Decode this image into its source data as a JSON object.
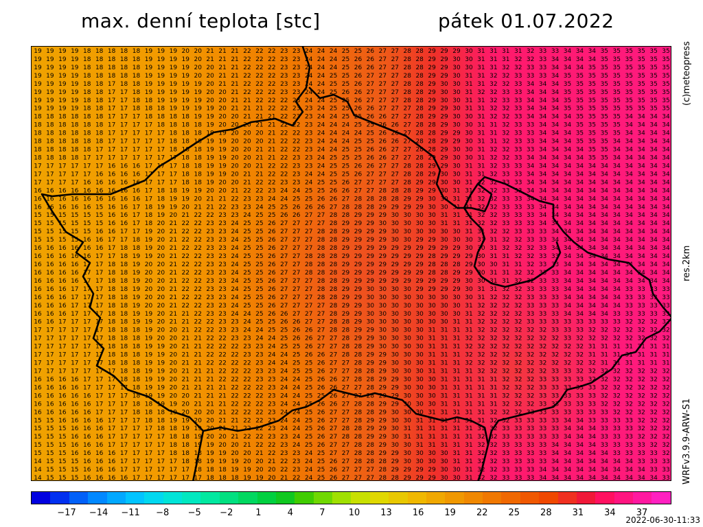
{
  "header": {
    "title": "max. denní teplota [stc]",
    "date": "pátek 01.07.2022"
  },
  "side_labels": {
    "copyright": "(c)meteopress",
    "resolution": "res.2km",
    "model": "WRFv3.9.9-ARW-S1"
  },
  "map": {
    "description_values_sample_rows": [
      [
        19,
        19,
        19,
        18,
        18,
        18,
        19,
        19,
        20,
        21,
        21,
        22,
        22,
        23,
        24,
        24,
        25,
        26,
        27,
        28,
        29,
        29,
        30,
        31,
        31,
        32,
        33,
        34,
        34,
        35,
        35,
        35,
        35
      ],
      [
        19,
        19,
        19,
        18,
        17,
        18,
        19,
        19,
        19,
        20,
        21,
        22,
        22,
        23,
        24,
        25,
        26,
        27,
        27,
        28,
        29,
        30,
        31,
        32,
        33,
        34,
        34,
        35,
        35,
        35,
        35,
        35,
        35
      ],
      [
        18,
        18,
        18,
        18,
        17,
        17,
        17,
        18,
        18,
        19,
        20,
        20,
        21,
        22,
        23,
        24,
        24,
        25,
        26,
        27,
        28,
        29,
        30,
        31,
        32,
        33,
        34,
        34,
        35,
        35,
        34,
        34,
        34
      ],
      [
        17,
        17,
        17,
        16,
        16,
        16,
        17,
        17,
        18,
        19,
        20,
        21,
        22,
        23,
        24,
        25,
        26,
        27,
        27,
        28,
        29,
        30,
        31,
        32,
        33,
        34,
        34,
        34,
        34,
        34,
        34,
        34,
        34
      ],
      [
        15,
        15,
        15,
        15,
        16,
        17,
        19,
        21,
        22,
        23,
        24,
        25,
        26,
        27,
        27,
        28,
        29,
        29,
        30,
        30,
        30,
        31,
        31,
        32,
        33,
        33,
        34,
        34,
        34,
        34,
        34,
        34,
        34
      ],
      [
        16,
        16,
        16,
        17,
        18,
        19,
        20,
        21,
        22,
        23,
        24,
        25,
        26,
        27,
        28,
        28,
        29,
        29,
        29,
        29,
        28,
        28,
        29,
        30,
        31,
        32,
        33,
        34,
        34,
        34,
        34,
        34,
        34
      ],
      [
        16,
        16,
        17,
        17,
        18,
        19,
        20,
        21,
        22,
        23,
        24,
        25,
        26,
        27,
        27,
        28,
        29,
        30,
        30,
        30,
        30,
        30,
        31,
        32,
        32,
        33,
        33,
        34,
        34,
        34,
        33,
        33,
        33
      ],
      [
        17,
        17,
        17,
        17,
        18,
        18,
        19,
        20,
        21,
        22,
        22,
        23,
        24,
        25,
        26,
        27,
        28,
        29,
        30,
        30,
        31,
        31,
        32,
        32,
        32,
        32,
        32,
        32,
        31,
        31,
        31,
        31,
        31
      ],
      [
        16,
        16,
        16,
        17,
        17,
        18,
        19,
        20,
        21,
        21,
        22,
        22,
        23,
        24,
        25,
        26,
        27,
        28,
        29,
        30,
        30,
        31,
        31,
        31,
        32,
        32,
        33,
        33,
        33,
        32,
        32,
        32,
        32
      ],
      [
        15,
        15,
        16,
        16,
        17,
        17,
        17,
        18,
        19,
        20,
        21,
        22,
        23,
        24,
        25,
        27,
        28,
        29,
        30,
        31,
        31,
        31,
        31,
        32,
        33,
        33,
        33,
        34,
        34,
        33,
        33,
        32,
        32
      ],
      [
        14,
        15,
        15,
        16,
        16,
        17,
        17,
        17,
        17,
        18,
        18,
        19,
        20,
        22,
        24,
        26,
        27,
        27,
        28,
        29,
        29,
        30,
        31,
        32,
        33,
        33,
        34,
        34,
        34,
        34,
        34,
        34,
        33
      ]
    ],
    "colors": {
      "cool": "#f0a800",
      "mid": "#f07a00",
      "warm": "#ef4a20",
      "hot": "#ff1a70"
    }
  },
  "scale": {
    "labels": [
      "−17",
      "−14",
      "−11",
      "−8",
      "−5",
      "−2",
      "1",
      "4",
      "7",
      "10",
      "13",
      "16",
      "19",
      "22",
      "25",
      "28",
      "31",
      "34",
      "37"
    ]
  },
  "timestamp": "2022-06-30-11:33"
}
